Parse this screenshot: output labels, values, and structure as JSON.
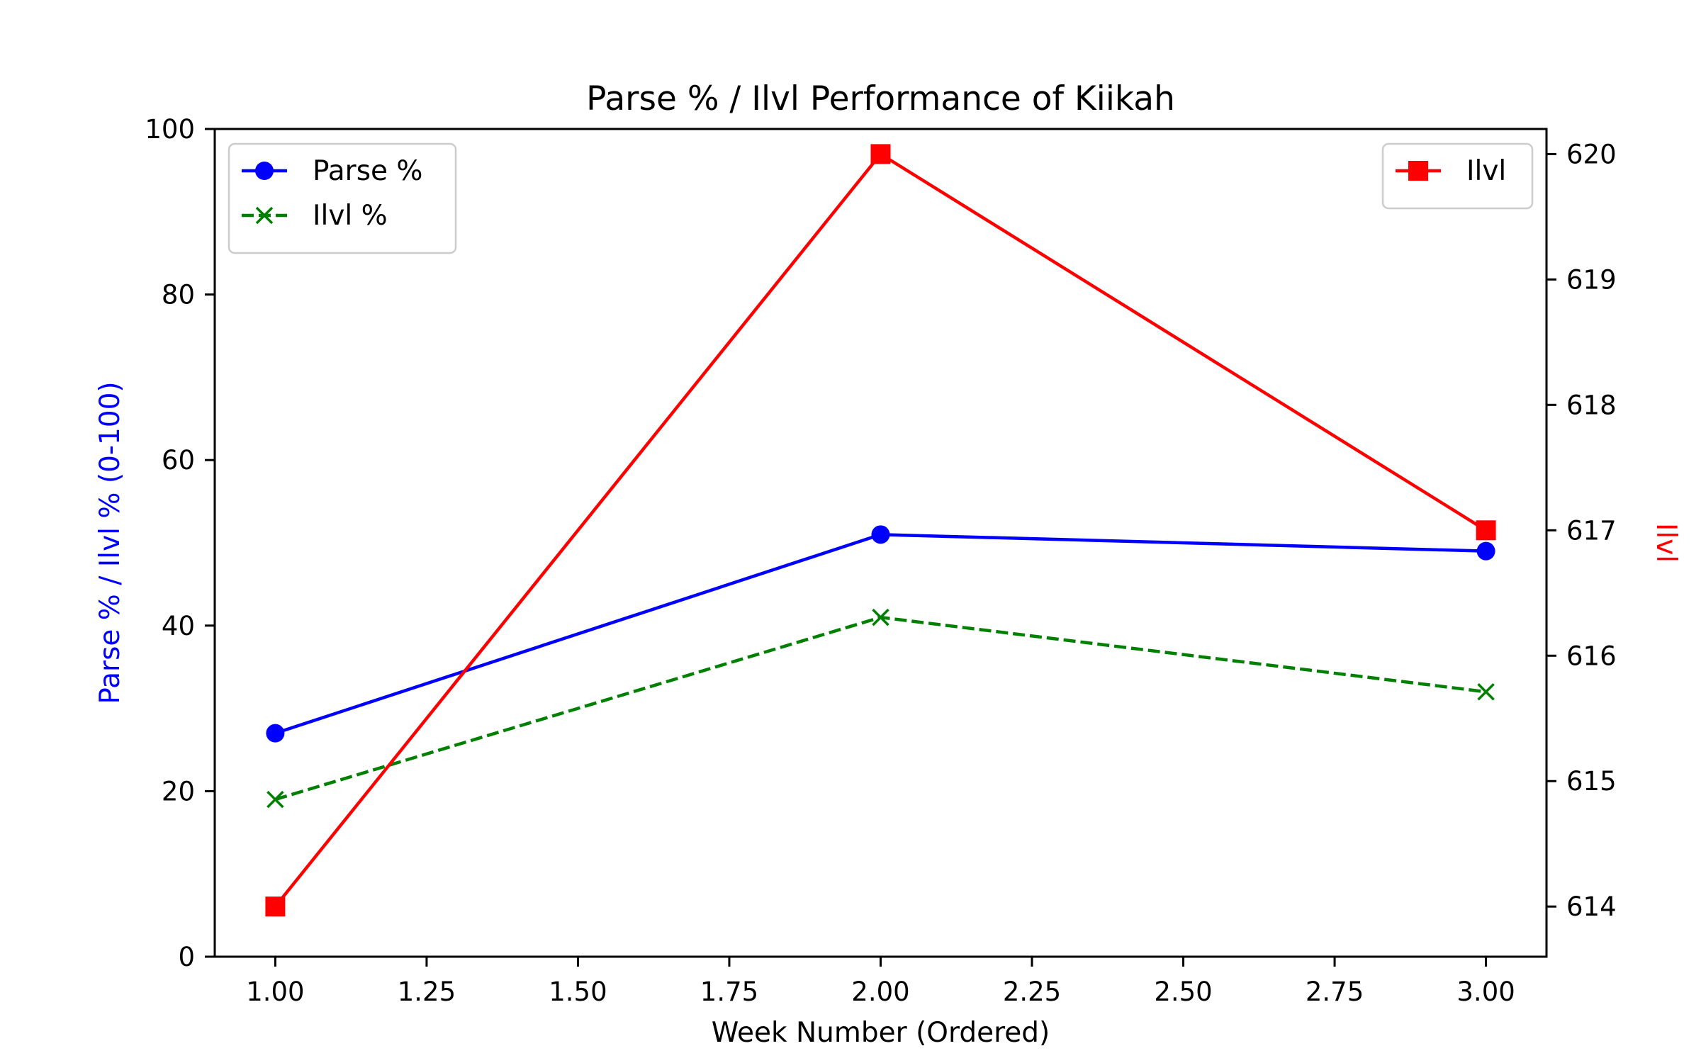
{
  "chart_data": {
    "type": "line",
    "title": "Parse % / Ilvl Performance of Kiikah",
    "xlabel": "Week Number (Ordered)",
    "ylabel": "Parse % / Ilvl % (0-100)",
    "y2label": "Ilvl",
    "xlim": [
      0.9,
      3.1
    ],
    "ylim": [
      0,
      100
    ],
    "y2lim": [
      613.6,
      620.2
    ],
    "x_ticks": [
      "1.00",
      "1.25",
      "1.50",
      "1.75",
      "2.00",
      "2.25",
      "2.50",
      "2.75",
      "3.00"
    ],
    "y_ticks": [
      "0",
      "20",
      "40",
      "60",
      "80",
      "100"
    ],
    "y2_ticks": [
      "614",
      "615",
      "616",
      "617",
      "618",
      "619",
      "620"
    ],
    "grid": false,
    "x": [
      1,
      2,
      3
    ],
    "series": [
      {
        "name": "Parse %",
        "axis": "left",
        "values": [
          27,
          51,
          49
        ],
        "color": "#0000ff",
        "marker": "circle",
        "style": "solid"
      },
      {
        "name": "Ilvl %",
        "axis": "left",
        "values": [
          19,
          41,
          32
        ],
        "color": "#008000",
        "marker": "x",
        "style": "dashed"
      },
      {
        "name": "Ilvl",
        "axis": "right",
        "values": [
          614,
          620,
          617
        ],
        "color": "#ff0000",
        "marker": "square",
        "style": "solid"
      }
    ],
    "legend_left_placement": "top-left",
    "legend_right_placement": "top-right",
    "colors": {
      "left_axis_label": "#0000ff",
      "right_axis_label": "#ff0000"
    }
  }
}
